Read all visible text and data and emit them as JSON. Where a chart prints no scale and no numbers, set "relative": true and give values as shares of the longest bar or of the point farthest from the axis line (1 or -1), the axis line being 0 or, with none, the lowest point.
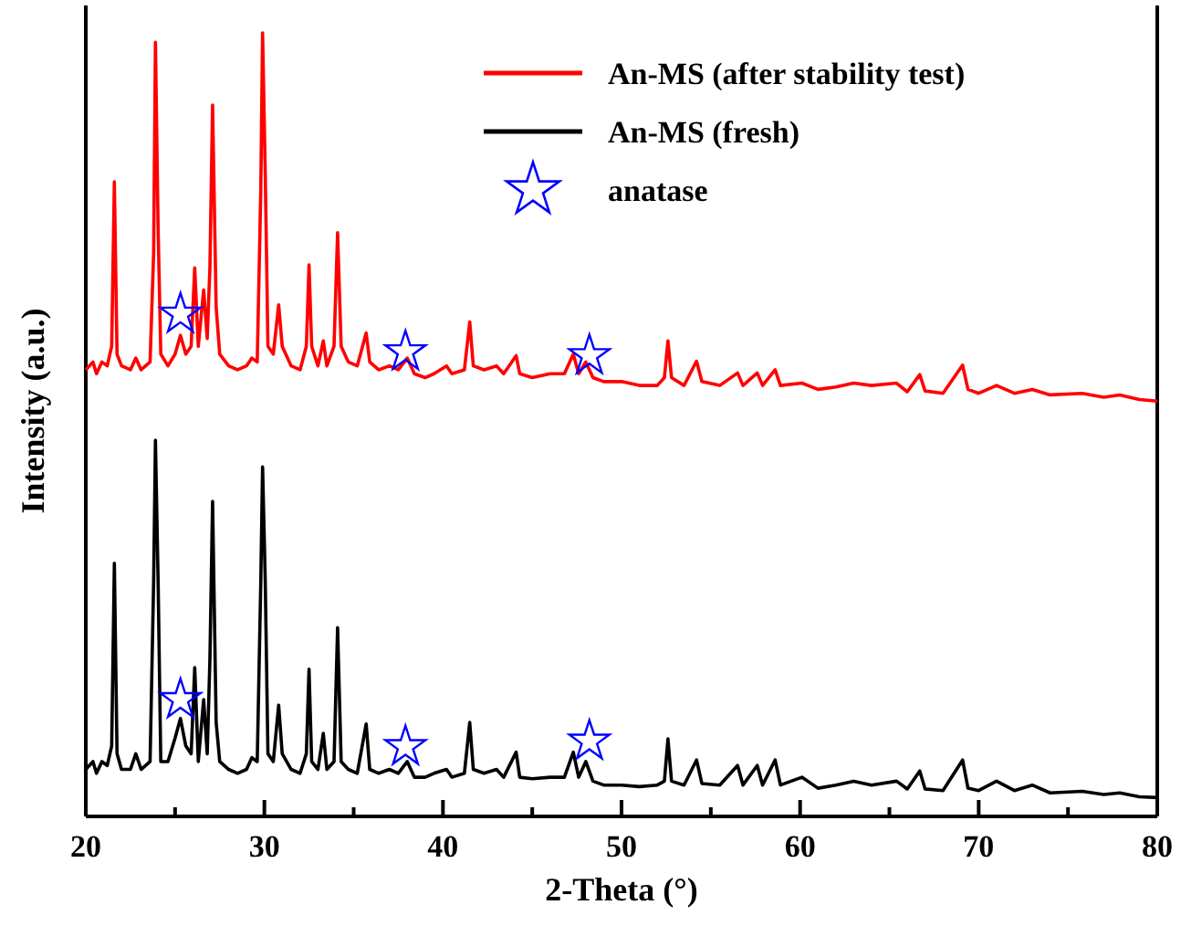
{
  "chart_data": {
    "type": "line",
    "xlabel": "2-Theta (°)",
    "ylabel": "Intensity (a.u.)",
    "relative": true,
    "legend": "top right",
    "grid": false,
    "tick_labels": "x",
    "xlim": [
      20,
      80
    ],
    "xticks": [
      20,
      {
        "value": 25,
        "label": null
      },
      30,
      {
        "value": 35,
        "label": null
      },
      40,
      {
        "value": 45,
        "label": null
      },
      50,
      {
        "value": 55,
        "label": null
      },
      60,
      {
        "value": 65,
        "label": null
      },
      70,
      {
        "value": 75,
        "label": null
      },
      80
    ],
    "series": [
      {
        "name": "An-MS (after stability test)",
        "color": "#ff0000",
        "x": [
          20,
          20.4,
          20.6,
          20.9,
          21.2,
          21.45,
          21.6,
          21.75,
          22,
          22.5,
          22.8,
          23.1,
          23.6,
          23.8,
          23.9,
          24.05,
          24.2,
          24.6,
          25.0,
          25.3,
          25.6,
          25.9,
          26.1,
          26.3,
          26.6,
          26.8,
          26.95,
          27.1,
          27.3,
          27.5,
          28,
          28.5,
          29,
          29.3,
          29.6,
          29.8,
          29.9,
          30.05,
          30.2,
          30.5,
          30.8,
          31,
          31.5,
          32,
          32.35,
          32.5,
          32.65,
          33,
          33.3,
          33.5,
          33.9,
          34.1,
          34.3,
          34.7,
          35.2,
          35.7,
          35.9,
          36.4,
          37,
          37.5,
          38,
          38.4,
          39,
          39.5,
          40.2,
          40.5,
          41.2,
          41.5,
          41.7,
          42.3,
          43,
          43.4,
          44.1,
          44.3,
          45,
          46,
          46.8,
          47.3,
          47.6,
          48,
          48.4,
          49,
          50,
          51,
          52,
          52.4,
          52.6,
          52.8,
          53.5,
          54.2,
          54.5,
          55.5,
          56.5,
          56.8,
          57.6,
          57.9,
          58.6,
          58.9,
          60.1,
          61,
          62,
          63,
          64,
          65.4,
          66,
          66.7,
          67,
          68,
          69.1,
          69.4,
          70,
          71,
          72,
          73,
          74,
          75.8,
          77,
          77.9,
          79,
          80
        ],
        "values": [
          0.57,
          0.58,
          0.565,
          0.58,
          0.575,
          0.6,
          0.81,
          0.59,
          0.575,
          0.57,
          0.585,
          0.57,
          0.58,
          0.72,
          0.988,
          0.75,
          0.59,
          0.575,
          0.59,
          0.614,
          0.59,
          0.6,
          0.7,
          0.6,
          0.672,
          0.61,
          0.7,
          0.908,
          0.65,
          0.59,
          0.575,
          0.57,
          0.575,
          0.585,
          0.58,
          0.8,
          1.0,
          0.82,
          0.6,
          0.59,
          0.653,
          0.6,
          0.575,
          0.57,
          0.6,
          0.704,
          0.6,
          0.575,
          0.607,
          0.575,
          0.6,
          0.745,
          0.6,
          0.58,
          0.575,
          0.617,
          0.58,
          0.57,
          0.575,
          0.57,
          0.585,
          0.565,
          0.56,
          0.565,
          0.575,
          0.565,
          0.57,
          0.631,
          0.575,
          0.57,
          0.575,
          0.565,
          0.588,
          0.565,
          0.56,
          0.565,
          0.565,
          0.59,
          0.565,
          0.58,
          0.56,
          0.555,
          0.555,
          0.55,
          0.55,
          0.56,
          0.607,
          0.56,
          0.55,
          0.581,
          0.555,
          0.55,
          0.566,
          0.55,
          0.566,
          0.55,
          0.57,
          0.55,
          0.553,
          0.545,
          0.548,
          0.553,
          0.55,
          0.553,
          0.542,
          0.564,
          0.543,
          0.54,
          0.576,
          0.545,
          0.54,
          0.55,
          0.54,
          0.545,
          0.538,
          0.54,
          0.535,
          0.538,
          0.532,
          0.53
        ]
      },
      {
        "name": "An-MS (fresh)",
        "color": "#000000",
        "x": [
          20,
          20.4,
          20.6,
          20.9,
          21.2,
          21.45,
          21.6,
          21.75,
          22,
          22.5,
          22.8,
          23.1,
          23.6,
          23.8,
          23.9,
          24.05,
          24.2,
          24.6,
          25.0,
          25.3,
          25.6,
          25.9,
          26.1,
          26.3,
          26.6,
          26.8,
          26.95,
          27.1,
          27.3,
          27.5,
          28,
          28.5,
          29,
          29.3,
          29.6,
          29.8,
          29.9,
          30.05,
          30.2,
          30.5,
          30.8,
          31,
          31.5,
          32,
          32.35,
          32.5,
          32.65,
          33,
          33.3,
          33.5,
          33.9,
          34.1,
          34.3,
          34.7,
          35.2,
          35.7,
          35.9,
          36.4,
          37,
          37.5,
          38,
          38.4,
          39,
          39.5,
          40.2,
          40.5,
          41.2,
          41.5,
          41.7,
          42.3,
          43,
          43.4,
          44.1,
          44.3,
          45,
          46,
          46.8,
          47.3,
          47.6,
          48,
          48.4,
          49,
          50,
          51,
          52,
          52.4,
          52.6,
          52.8,
          53.5,
          54.2,
          54.5,
          55.5,
          56.5,
          56.8,
          57.6,
          57.9,
          58.6,
          58.9,
          60.1,
          61,
          62,
          63,
          64,
          65.4,
          66,
          66.7,
          67,
          68,
          69.1,
          69.4,
          70,
          71,
          72,
          73,
          74,
          75.8,
          77,
          77.9,
          79,
          80
        ],
        "values": [
          0.06,
          0.07,
          0.055,
          0.07,
          0.065,
          0.09,
          0.323,
          0.08,
          0.06,
          0.06,
          0.08,
          0.06,
          0.07,
          0.3,
          0.48,
          0.3,
          0.07,
          0.07,
          0.1,
          0.125,
          0.09,
          0.08,
          0.19,
          0.07,
          0.149,
          0.08,
          0.2,
          0.402,
          0.12,
          0.07,
          0.06,
          0.055,
          0.06,
          0.075,
          0.07,
          0.3,
          0.446,
          0.3,
          0.08,
          0.07,
          0.142,
          0.08,
          0.06,
          0.055,
          0.08,
          0.188,
          0.07,
          0.06,
          0.106,
          0.06,
          0.07,
          0.241,
          0.07,
          0.06,
          0.055,
          0.118,
          0.06,
          0.055,
          0.06,
          0.055,
          0.07,
          0.05,
          0.05,
          0.055,
          0.06,
          0.05,
          0.055,
          0.12,
          0.06,
          0.055,
          0.06,
          0.05,
          0.082,
          0.05,
          0.048,
          0.05,
          0.05,
          0.082,
          0.05,
          0.07,
          0.045,
          0.04,
          0.04,
          0.038,
          0.04,
          0.045,
          0.099,
          0.045,
          0.04,
          0.072,
          0.042,
          0.04,
          0.065,
          0.04,
          0.065,
          0.04,
          0.072,
          0.04,
          0.05,
          0.036,
          0.04,
          0.045,
          0.04,
          0.045,
          0.035,
          0.058,
          0.035,
          0.033,
          0.072,
          0.036,
          0.033,
          0.045,
          0.033,
          0.04,
          0.03,
          0.032,
          0.028,
          0.03,
          0.025,
          0.024
        ]
      },
      {
        "name": "anatase",
        "type": "scatter",
        "marker": "star",
        "color": "#0000ff",
        "x": [
          25.3,
          37.9,
          48.2,
          25.3,
          37.9,
          48.2
        ],
        "values": [
          0.641,
          0.593,
          0.588,
          0.149,
          0.089,
          0.096
        ]
      }
    ]
  }
}
